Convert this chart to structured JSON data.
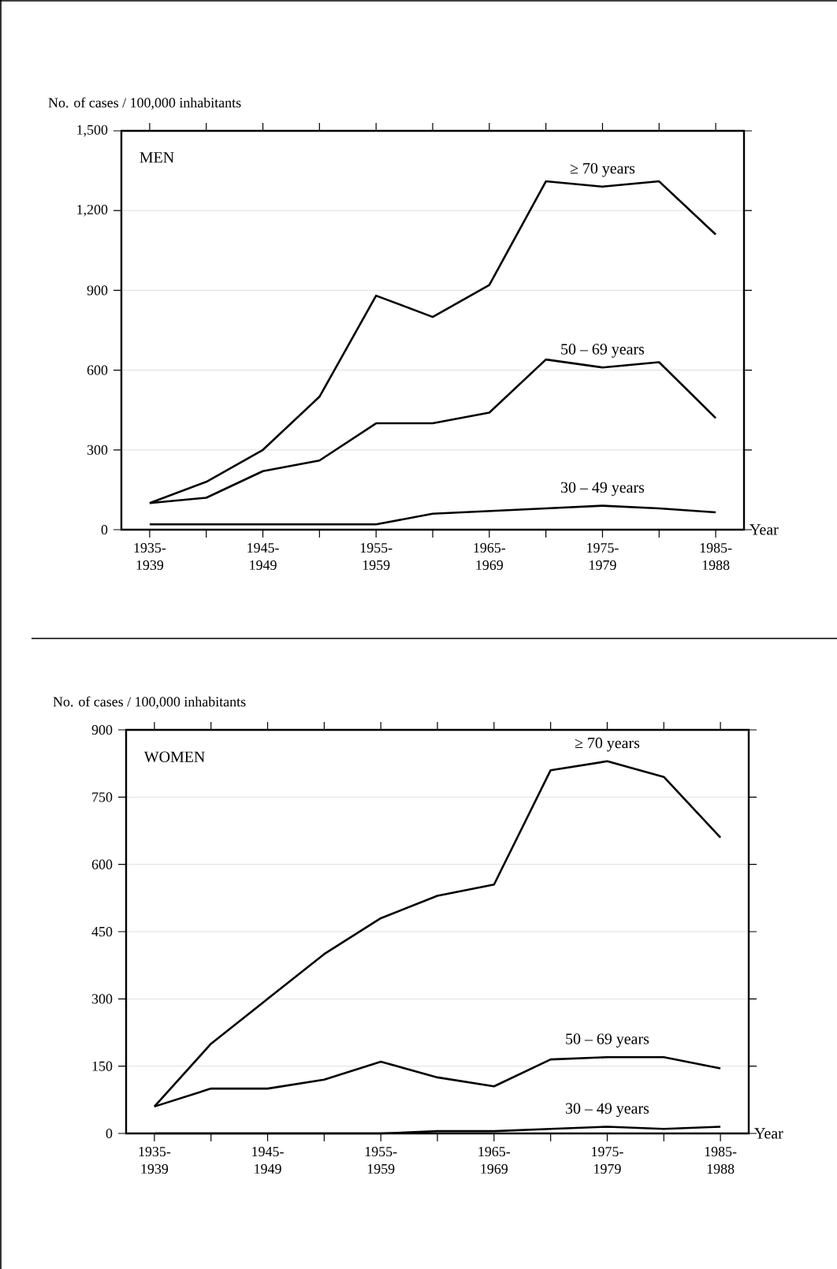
{
  "chart_data": [
    {
      "type": "line",
      "title": "MEN",
      "ylabel": "No. of cases / 100,000 inhabitants",
      "xlabel": "Year",
      "categories": [
        "1935-1939",
        null,
        "1945-1949",
        null,
        "1955-1959",
        null,
        "1965-1969",
        null,
        "1975-1979",
        null,
        "1985-1988"
      ],
      "series": [
        {
          "name": "≥ 70 years",
          "color": "#000000",
          "values": [
            100,
            180,
            300,
            500,
            880,
            800,
            920,
            1310,
            1290,
            1310,
            1110
          ]
        },
        {
          "name": "50 – 69 years",
          "color": "#000000",
          "values": [
            100,
            120,
            220,
            260,
            400,
            400,
            440,
            640,
            610,
            630,
            420
          ]
        },
        {
          "name": "30 – 49 years",
          "color": "#000000",
          "values": [
            20,
            20,
            20,
            20,
            20,
            60,
            70,
            80,
            90,
            80,
            65
          ]
        }
      ],
      "ylim": [
        0,
        1500
      ],
      "yticks": [
        0,
        300,
        600,
        900,
        {
          "value": 1200,
          "label": "1,200"
        },
        {
          "value": 1500,
          "label": "1,500"
        }
      ],
      "grid": "y",
      "marker": "none",
      "line_style": "solid"
    },
    {
      "type": "line",
      "title": "WOMEN",
      "ylabel": "No. of cases / 100,000 inhabitants",
      "xlabel": "Year",
      "categories": [
        "1935-1939",
        null,
        "1945-1949",
        null,
        "1955-1959",
        null,
        "1965-1969",
        null,
        "1975-1979",
        null,
        "1985-1988"
      ],
      "series": [
        {
          "name": "≥ 70 years",
          "color": "#000000",
          "values": [
            60,
            200,
            300,
            400,
            480,
            530,
            555,
            810,
            830,
            795,
            660
          ]
        },
        {
          "name": "50 – 69 years",
          "color": "#000000",
          "values": [
            60,
            100,
            100,
            120,
            160,
            125,
            105,
            165,
            170,
            170,
            145
          ]
        },
        {
          "name": "30 – 49 years",
          "color": "#000000",
          "values": [
            0,
            0,
            0,
            0,
            0,
            5,
            5,
            10,
            15,
            10,
            15
          ]
        }
      ],
      "ylim": [
        0,
        900
      ],
      "yticks": [
        0,
        150,
        300,
        450,
        600,
        750,
        900
      ],
      "grid": "y",
      "marker": "none",
      "line_style": "solid"
    }
  ]
}
